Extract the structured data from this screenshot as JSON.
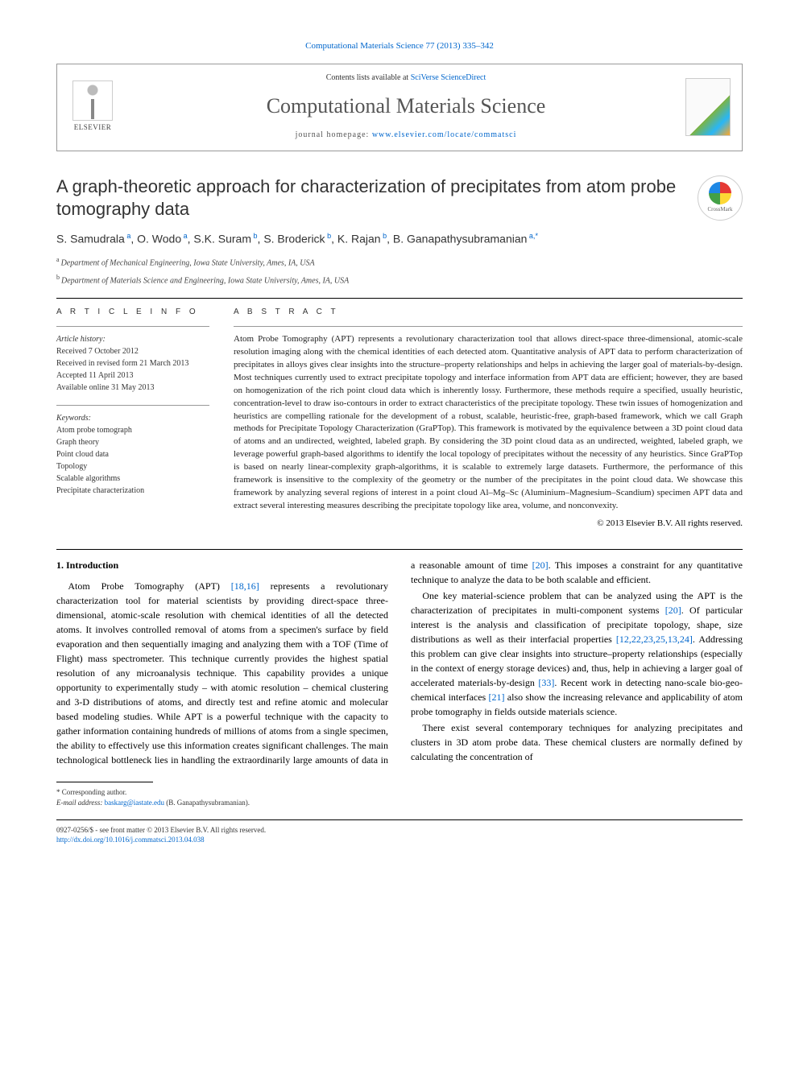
{
  "journal_ref": "Computational Materials Science 77 (2013) 335–342",
  "header": {
    "contents_prefix": "Contents lists available at ",
    "contents_link": "SciVerse ScienceDirect",
    "journal_name": "Computational Materials Science",
    "homepage_prefix": "journal homepage: ",
    "homepage_link": "www.elsevier.com/locate/commatsci",
    "publisher": "ELSEVIER"
  },
  "crossmark_label": "CrossMark",
  "title": "A graph-theoretic approach for characterization of precipitates from atom probe tomography data",
  "authors_html": "S. Samudrala|a|, O. Wodo|a|, S.K. Suram|b|, S. Broderick|b|, K. Rajan|b|, B. Ganapathysubramanian|a,*|",
  "authors": [
    {
      "name": "S. Samudrala",
      "aff": "a"
    },
    {
      "name": "O. Wodo",
      "aff": "a"
    },
    {
      "name": "S.K. Suram",
      "aff": "b"
    },
    {
      "name": "S. Broderick",
      "aff": "b"
    },
    {
      "name": "K. Rajan",
      "aff": "b"
    },
    {
      "name": "B. Ganapathysubramanian",
      "aff": "a,*"
    }
  ],
  "affiliations": [
    {
      "sup": "a",
      "text": "Department of Mechanical Engineering, Iowa State University, Ames, IA, USA"
    },
    {
      "sup": "b",
      "text": "Department of Materials Science and Engineering, Iowa State University, Ames, IA, USA"
    }
  ],
  "info": {
    "label": "A R T I C L E   I N F O",
    "history_label": "Article history:",
    "history": [
      "Received 7 October 2012",
      "Received in revised form 21 March 2013",
      "Accepted 11 April 2013",
      "Available online 31 May 2013"
    ],
    "keywords_label": "Keywords:",
    "keywords": [
      "Atom probe tomograph",
      "Graph theory",
      "Point cloud data",
      "Topology",
      "Scalable algorithms",
      "Precipitate characterization"
    ]
  },
  "abstract": {
    "label": "A B S T R A C T",
    "text": "Atom Probe Tomography (APT) represents a revolutionary characterization tool that allows direct-space three-dimensional, atomic-scale resolution imaging along with the chemical identities of each detected atom. Quantitative analysis of APT data to perform characterization of precipitates in alloys gives clear insights into the structure–property relationships and helps in achieving the larger goal of materials-by-design. Most techniques currently used to extract precipitate topology and interface information from APT data are efficient; however, they are based on homogenization of the rich point cloud data which is inherently lossy. Furthermore, these methods require a specified, usually heuristic, concentration-level to draw iso-contours in order to extract characteristics of the precipitate topology. These twin issues of homogenization and heuristics are compelling rationale for the development of a robust, scalable, heuristic-free, graph-based framework, which we call Graph methods for Precipitate Topology Characterization (GraPTop). This framework is motivated by the equivalence between a 3D point cloud data of atoms and an undirected, weighted, labeled graph. By considering the 3D point cloud data as an undirected, weighted, labeled graph, we leverage powerful graph-based algorithms to identify the local topology of precipitates without the necessity of any heuristics. Since GraPTop is based on nearly linear-complexity graph-algorithms, it is scalable to extremely large datasets. Furthermore, the performance of this framework is insensitive to the complexity of the geometry or the number of the precipitates in the point cloud data. We showcase this framework by analyzing several regions of interest in a point cloud Al–Mg–Sc (Aluminium–Magnesium–Scandium) specimen APT data and extract several interesting measures describing the precipitate topology like area, volume, and nonconvexity.",
    "copyright": "© 2013 Elsevier B.V. All rights reserved."
  },
  "body": {
    "section_heading": "1. Introduction",
    "p1a": "Atom Probe Tomography (APT) ",
    "p1_ref1": "[18,16]",
    "p1b": " represents a revolutionary characterization tool for material scientists by providing direct-space three-dimensional, atomic-scale resolution with chemical identities of all the detected atoms. It involves controlled removal of atoms from a specimen's surface by field evaporation and then sequentially imaging and analyzing them with a TOF (Time of Flight) mass spectrometer. This technique currently provides the highest spatial resolution of any microanalysis technique. This capability provides a unique opportunity to experimentally study – with atomic resolution – chemical clustering and 3-D distributions of atoms, and directly test and refine atomic and molecular based modeling studies. While APT is a powerful technique with the capacity to gather information containing hundreds of millions of atoms from a single specimen, the ability to effectively use this information creates significant challenges. The main technological bottleneck lies in handling the extraordinarily large amounts of data in a reasonable amount of time ",
    "p1_ref2": "[20]",
    "p1c": ". This imposes a constraint for any quantitative technique to analyze the data to be both scalable and efficient.",
    "p2a": "One key material-science problem that can be analyzed using the APT is the characterization of precipitates in multi-component systems ",
    "p2_ref1": "[20]",
    "p2b": ". Of particular interest is the analysis and classification of precipitate topology, shape, size distributions as well as their interfacial properties ",
    "p2_ref2": "[12,22,23,25,13,24]",
    "p2c": ". Addressing this problem can give clear insights into structure–property relationships (especially in the context of energy storage devices) and, thus, help in achieving a larger goal of accelerated materials-by-design ",
    "p2_ref3": "[33]",
    "p2d": ". Recent work in detecting nano-scale bio-geo-chemical interfaces ",
    "p2_ref4": "[21]",
    "p2e": " also show the increasing relevance and applicability of atom probe tomography in fields outside materials science.",
    "p3": "There exist several contemporary techniques for analyzing precipitates and clusters in 3D atom probe data. These chemical clusters are normally defined by calculating the concentration of"
  },
  "footnote": {
    "corr_label": "* Corresponding author.",
    "email_label": "E-mail address:",
    "email": "baskarg@iastate.edu",
    "email_who": "(B. Ganapathysubramanian)."
  },
  "bottom": {
    "issn": "0927-0256/$ - see front matter © 2013 Elsevier B.V. All rights reserved.",
    "doi_label": "http://dx.doi.org/",
    "doi": "10.1016/j.commatsci.2013.04.038"
  },
  "colors": {
    "link": "#0066cc",
    "text": "#000000",
    "muted": "#555555"
  }
}
